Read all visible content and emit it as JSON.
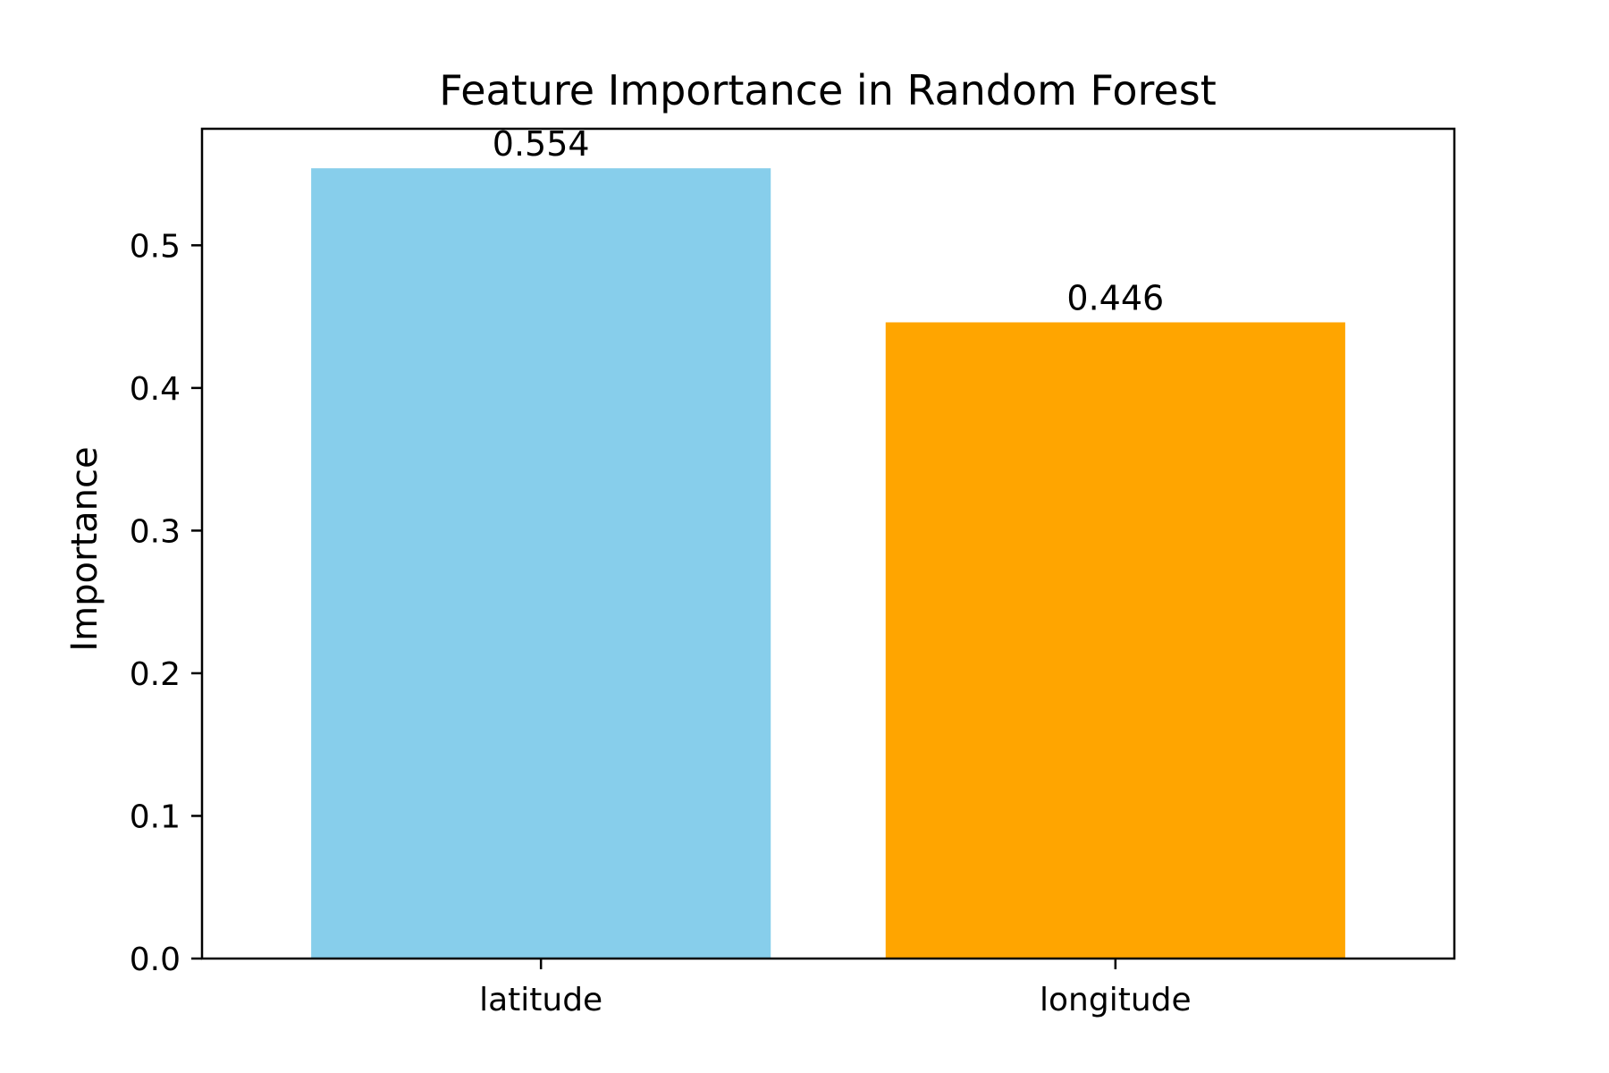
{
  "chart_data": {
    "type": "bar",
    "title": "Feature Importance in Random Forest",
    "xlabel": "",
    "ylabel": "Importance",
    "categories": [
      "latitude",
      "longitude"
    ],
    "values": [
      0.554,
      0.446
    ],
    "value_labels": [
      "0.554",
      "0.446"
    ],
    "colors": [
      "#87CEEB",
      "#FFA500"
    ],
    "ylim": [
      0,
      0.5817
    ],
    "yticks": [
      0.0,
      0.1,
      0.2,
      0.3,
      0.4,
      0.5
    ],
    "ytick_labels": [
      "0.0",
      "0.1",
      "0.2",
      "0.3",
      "0.4",
      "0.5"
    ],
    "grid": false,
    "legend": "none"
  }
}
